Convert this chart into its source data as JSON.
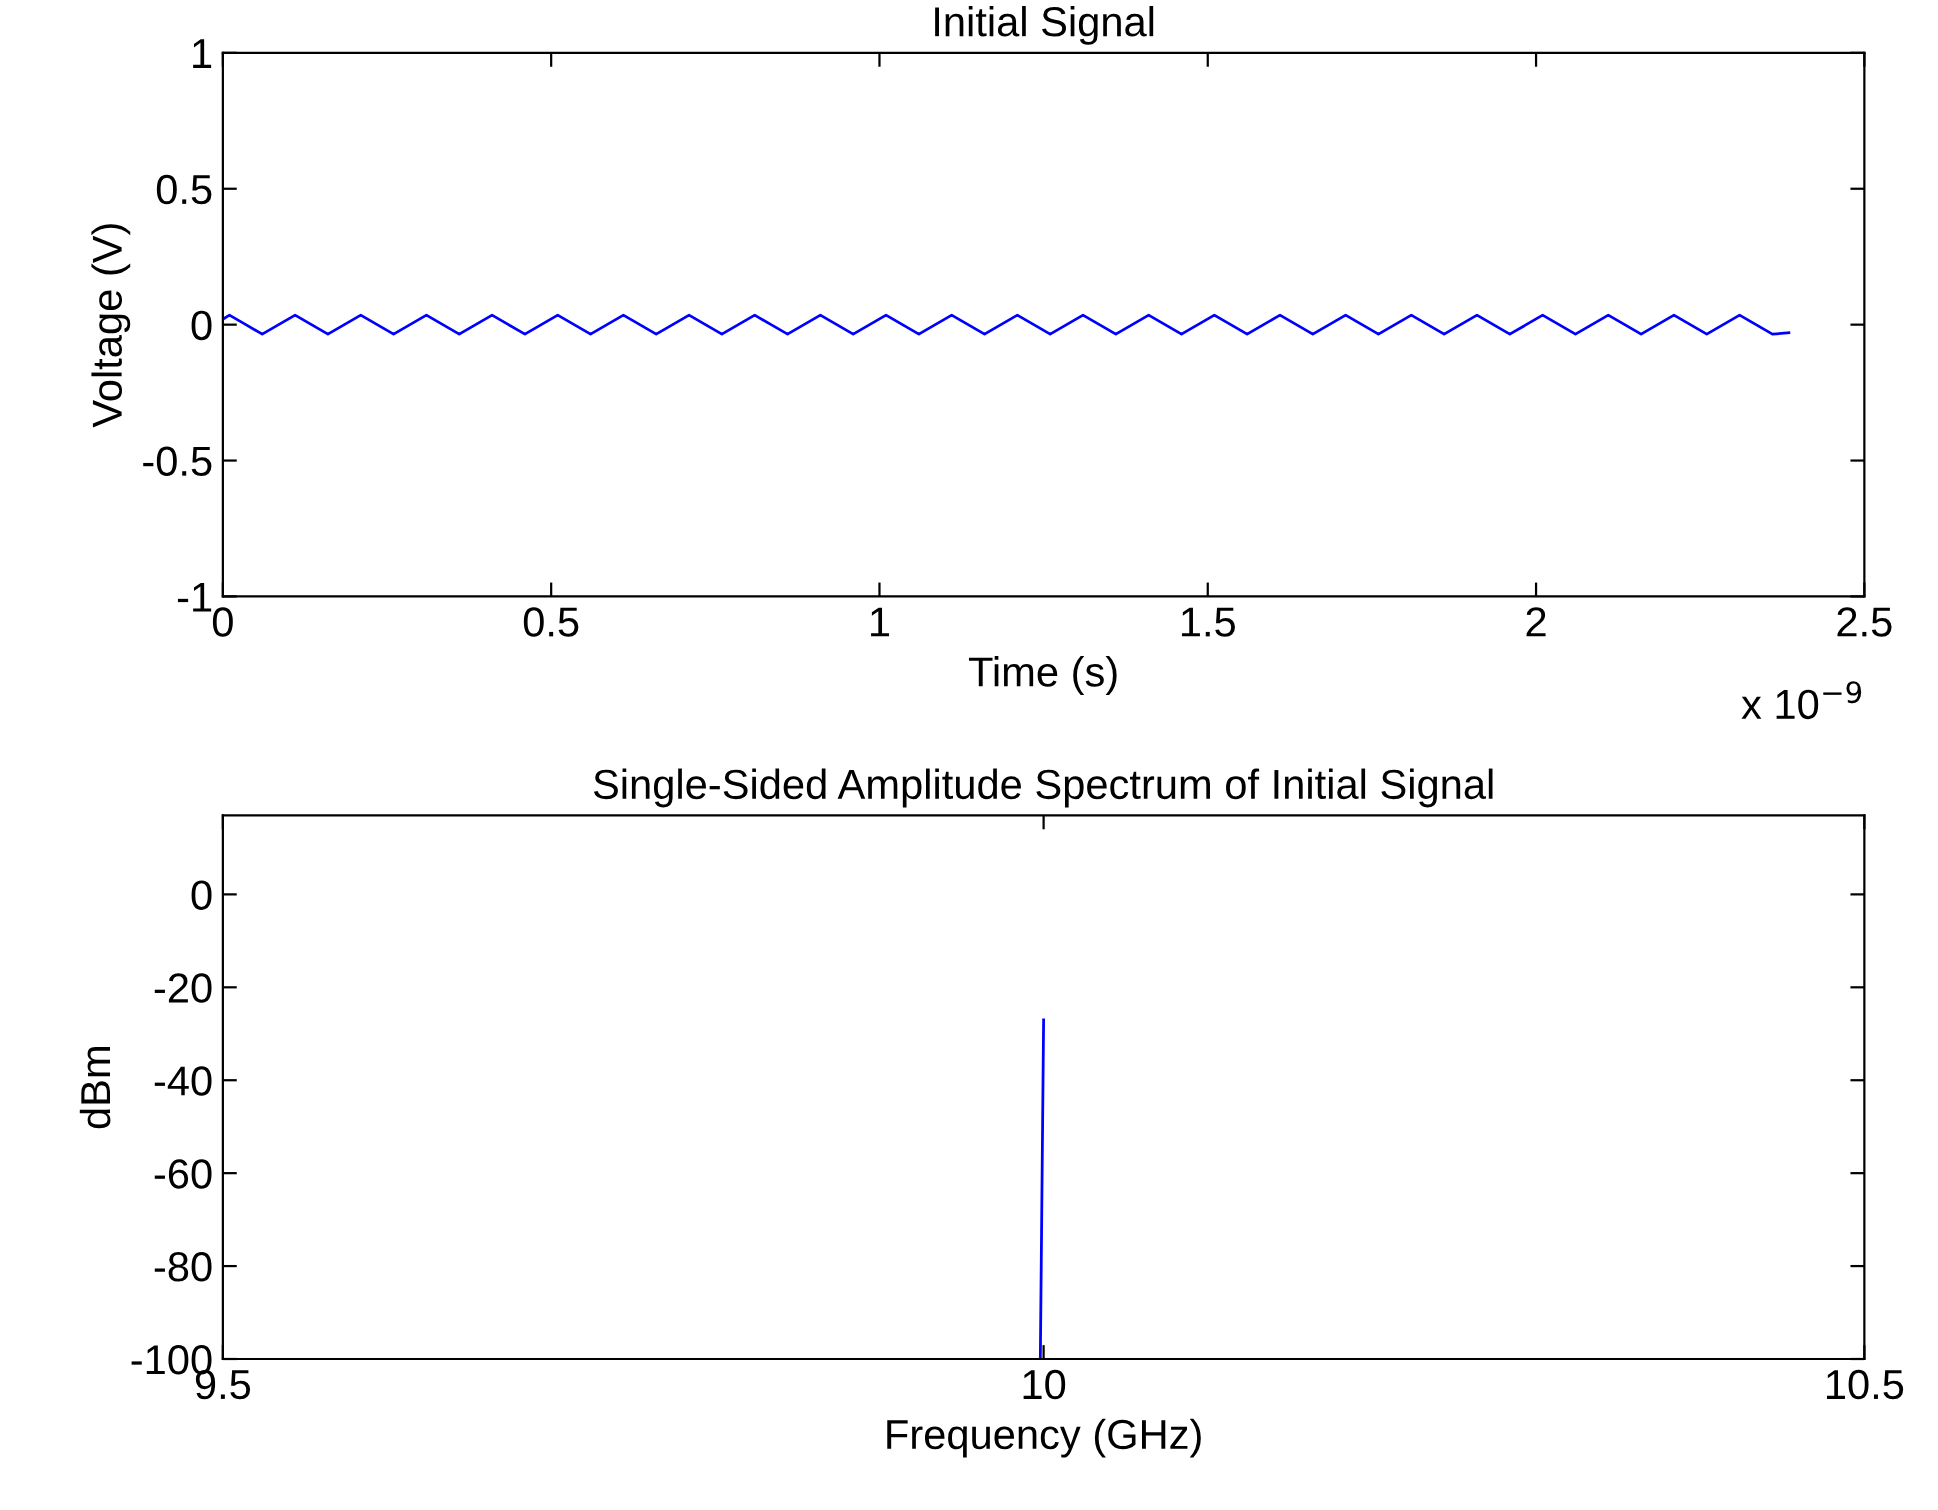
{
  "chart_data": [
    {
      "type": "line",
      "title": "Initial Signal",
      "xlabel": "Time (s)",
      "ylabel": "Voltage (V)",
      "annotations": [
        "x 10$^{−9}$"
      ],
      "x": [
        0,
        0.01,
        0.035,
        0.06,
        0.085,
        0.11,
        0.135,
        0.16,
        0.185,
        0.21,
        0.235,
        0.26,
        0.285,
        0.31,
        0.335,
        0.36,
        0.385,
        0.41,
        0.435,
        0.46,
        0.485,
        0.51,
        0.535,
        0.56,
        0.585,
        0.61,
        0.635,
        0.66,
        0.685,
        0.71,
        0.735,
        0.76,
        0.785,
        0.81,
        0.835,
        0.86,
        0.885,
        0.91,
        0.935,
        0.96,
        0.985,
        1.01,
        1.035,
        1.06,
        1.085,
        1.11,
        1.135,
        1.16,
        1.185,
        1.21,
        1.235,
        1.26,
        1.285,
        1.31,
        1.335,
        1.36,
        1.385,
        1.41,
        1.435,
        1.46,
        1.485,
        1.51,
        1.535,
        1.56,
        1.585,
        1.61,
        1.635,
        1.66,
        1.685,
        1.71,
        1.735,
        1.76,
        1.785,
        1.81,
        1.835,
        1.86,
        1.885,
        1.91,
        1.935,
        1.96,
        1.985,
        2.01,
        2.035,
        2.06,
        2.085,
        2.11,
        2.135,
        2.16,
        2.185,
        2.21,
        2.235,
        2.26,
        2.285,
        2.31,
        2.335,
        2.36,
        2.385
      ],
      "series": [
        {
          "color": "#0000ff",
          "values": [
            0.02,
            0.035,
            0,
            -0.035,
            0,
            0.035,
            0,
            -0.035,
            0,
            0.035,
            0,
            -0.035,
            0,
            0.035,
            0,
            -0.035,
            0,
            0.035,
            0,
            -0.035,
            0,
            0.035,
            0,
            -0.035,
            0,
            0.035,
            0,
            -0.035,
            0,
            0.035,
            0,
            -0.035,
            0,
            0.035,
            0,
            -0.035,
            0,
            0.035,
            0,
            -0.035,
            0,
            0.035,
            0,
            -0.035,
            0,
            0.035,
            0,
            -0.035,
            0,
            0.035,
            0,
            -0.035,
            0,
            0.035,
            0,
            -0.035,
            0,
            0.035,
            0,
            -0.035,
            0,
            0.035,
            0,
            -0.035,
            0,
            0.035,
            0,
            -0.035,
            0,
            0.035,
            0,
            -0.035,
            0,
            0.035,
            0,
            -0.035,
            0,
            0.035,
            0,
            -0.035,
            0,
            0.035,
            0,
            -0.035,
            0,
            0.035,
            0,
            -0.035,
            0,
            0.035,
            0,
            -0.035,
            0,
            0.035,
            0,
            -0.035,
            -0.03
          ]
        }
      ],
      "xlim": [
        0,
        2.5
      ],
      "xticks": [
        0,
        0.5,
        1,
        1.5,
        2,
        2.5
      ],
      "ylim": [
        -1,
        1
      ],
      "yticks": [
        -1,
        -0.5,
        0,
        0.5,
        1
      ],
      "grid": false,
      "legend": false
    },
    {
      "type": "line",
      "title": "Single-Sided Amplitude Spectrum of Initial Signal",
      "xlabel": "Frequency (GHz)",
      "ylabel": "dBm",
      "x": [
        9.998,
        10.0
      ],
      "series": [
        {
          "color": "#0000ff",
          "values": [
            -100,
            -27
          ]
        }
      ],
      "xlim": [
        9.5,
        10.5
      ],
      "xticks": [
        9.5,
        10,
        10.5
      ],
      "ylim": [
        -100,
        17
      ],
      "yticks": [
        -100,
        -80,
        -60,
        -40,
        -20,
        0
      ],
      "grid": false,
      "legend": false
    }
  ]
}
